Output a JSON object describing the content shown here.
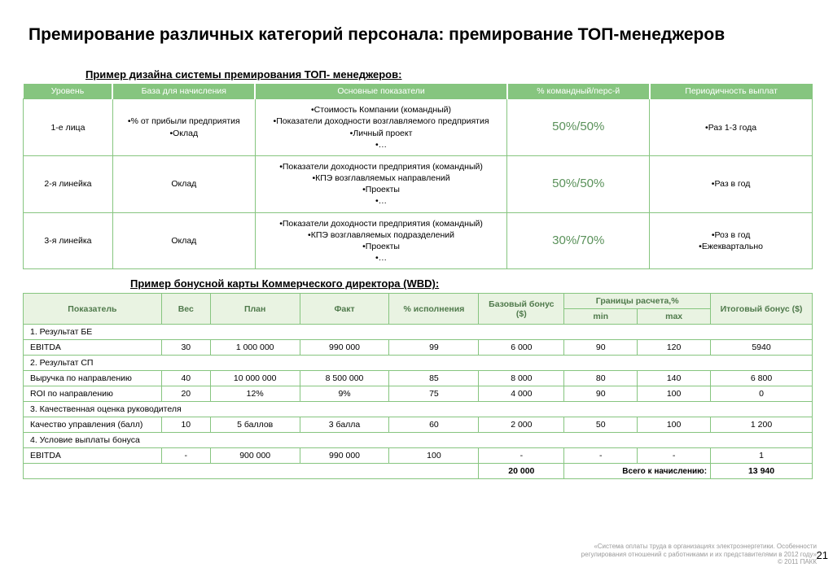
{
  "title": "Премирование различных категорий персонала: премирование ТОП-менеджеров",
  "subtitle1": "Пример дизайна системы премирования ТОП- менеджеров:",
  "subtitle2": "Пример бонусной карты Коммерческого директора (WBD):",
  "t1": {
    "headers": [
      "Уровень",
      "База для начисления",
      "Основные показатели",
      "% командный/перс-й",
      "Периодичность выплат"
    ],
    "colwidths": [
      "110px",
      "175px",
      "310px",
      "175px",
      "200px"
    ],
    "rows": [
      {
        "level": "1-е лица",
        "base": "•% от прибыли предприятия\n•Оклад",
        "kpi": "•Стоимость Компании (командный)\n•Показатели доходности  возглавляемого предприятия\n•Личный проект\n•…",
        "ratio": "50%/50%",
        "freq": "•Раз 1-3 года"
      },
      {
        "level": "2-я линейка",
        "base": "Оклад",
        "kpi": "•Показатели доходности  предприятия (командный)\n•КПЭ возглавляемых направлений\n•Проекты\n•…",
        "ratio": "50%/50%",
        "freq": "•Раз в год"
      },
      {
        "level": "3-я линейка",
        "base": "Оклад",
        "kpi": "•Показатели доходности  предприятия (командный)\n•КПЭ возглавляемых подразделений\n•Проекты\n•…",
        "ratio": "30%/70%",
        "freq": "•Роз в год\n•Ежеквартально"
      }
    ]
  },
  "t2": {
    "headers_top": [
      "Показатель",
      "Вес",
      "План",
      "Факт",
      "% исполнения",
      "Базовый бонус ($)",
      "Границы расчета,%",
      "Итоговый бонус ($)"
    ],
    "headers_sub": [
      "min",
      "max"
    ],
    "colwidths": [
      "170px",
      "60px",
      "110px",
      "110px",
      "110px",
      "105px",
      "90px",
      "90px",
      "125px"
    ],
    "sections": [
      {
        "title": "1. Результат БЕ",
        "rows": [
          {
            "n": "EBITDA",
            "w": "30",
            "p": "1 000 000",
            "f": "990 000",
            "pct": "99",
            "bb": "6 000",
            "mn": "90",
            "mx": "120",
            "ib": "5940"
          }
        ]
      },
      {
        "title": "2. Результат СП",
        "rows": [
          {
            "n": "Выручка по направлению",
            "w": "40",
            "p": "10 000 000",
            "f": "8 500 000",
            "pct": "85",
            "bb": "8 000",
            "mn": "80",
            "mx": "140",
            "ib": "6 800"
          },
          {
            "n": "ROI по направлению",
            "w": "20",
            "p": "12%",
            "f": "9%",
            "pct": "75",
            "bb": "4 000",
            "mn": "90",
            "mx": "100",
            "ib": "0"
          }
        ]
      },
      {
        "title": "3. Качественная оценка руководителя",
        "rows": [
          {
            "n": "Качество управления (балл)",
            "w": "10",
            "p": "5 баллов",
            "f": "3 балла",
            "pct": "60",
            "bb": "2 000",
            "mn": "50",
            "mx": "100",
            "ib": "1 200"
          }
        ]
      },
      {
        "title": "4. Условие выплаты бонуса",
        "rows": [
          {
            "n": "EBITDA",
            "w": "-",
            "p": "900 000",
            "f": "990 000",
            "pct": "100",
            "bb": "-",
            "mn": "-",
            "mx": "-",
            "ib": "1"
          }
        ]
      }
    ],
    "total": {
      "bb": "20 000",
      "label": "Всего к начислению:",
      "ib": "13 940"
    }
  },
  "footer1": "«Система оплаты труда в организациях электроэнергетики. Особенности",
  "footer2": "регулирования отношений с работниками и их представителями в 2012 году»",
  "footer3": "© 2011 ПАКК",
  "pagenum": "21"
}
